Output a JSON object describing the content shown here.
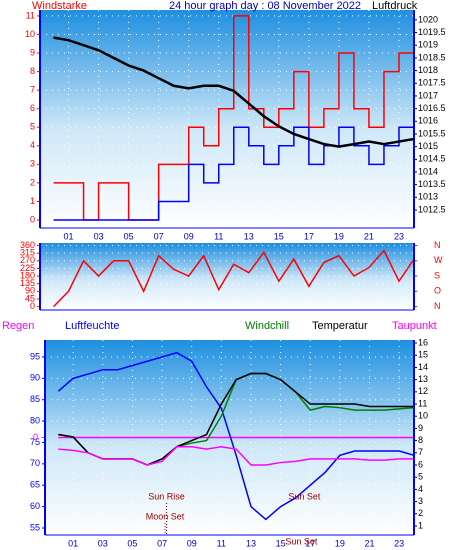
{
  "chart_data": [
    {
      "type": "line",
      "title": "24 hour graph day : 08 November 2022",
      "y_label": "Windstarke",
      "y2_label": "Luftdruck",
      "x": [
        0,
        1,
        2,
        3,
        4,
        5,
        6,
        7,
        8,
        9,
        10,
        11,
        12,
        13,
        14,
        15,
        16,
        17,
        18,
        19,
        20,
        21,
        22,
        23,
        24
      ],
      "xlim": [
        -0.9,
        24
      ],
      "xticks": [
        {
          "value": 1,
          "label": "01"
        },
        {
          "value": 3,
          "label": "03"
        },
        {
          "value": 5,
          "label": "05"
        },
        {
          "value": 7,
          "label": "07"
        },
        {
          "value": 9,
          "label": "09"
        },
        {
          "value": 11,
          "label": "11"
        },
        {
          "value": 13,
          "label": "13"
        },
        {
          "value": 15,
          "label": "15"
        },
        {
          "value": 17,
          "label": "17"
        },
        {
          "value": 19,
          "label": "19"
        },
        {
          "value": 21,
          "label": "21"
        },
        {
          "value": 23,
          "label": "23"
        }
      ],
      "ylim": [
        -0.43,
        11.32
      ],
      "yticks": [
        0,
        1,
        2,
        3,
        4,
        5,
        6,
        7,
        8,
        9,
        10,
        11
      ],
      "y2lim": [
        1011.79,
        1020.39
      ],
      "y2ticks": [
        1012.5,
        1013,
        1013.5,
        1014,
        1014.5,
        1015,
        1015.5,
        1016,
        1016.5,
        1017,
        1017.5,
        1018,
        1018.5,
        1019,
        1019.5,
        1020
      ],
      "grid": true,
      "series": [
        {
          "color": "#ff0000",
          "step": true,
          "values": [
            2,
            2,
            0,
            2,
            2,
            0,
            0,
            3,
            3,
            5,
            4,
            6,
            11,
            6,
            5,
            6,
            8,
            5,
            6,
            9,
            6,
            5,
            8,
            9,
            5
          ]
        },
        {
          "color": "#0000ff",
          "step": true,
          "values": [
            0,
            0,
            0,
            0,
            0,
            0,
            0,
            1,
            1,
            3,
            2,
            3,
            5,
            4,
            3,
            4,
            5,
            3,
            4,
            5,
            4,
            3,
            4,
            5,
            3
          ]
        },
        {
          "color": "#000000",
          "axis": "y2",
          "values": [
            1019.3,
            1019.2,
            1019.0,
            1018.8,
            1018.5,
            1018.2,
            1018.0,
            1017.7,
            1017.4,
            1017.3,
            1017.4,
            1017.4,
            1017.2,
            1016.7,
            1016.2,
            1015.8,
            1015.5,
            1015.3,
            1015.1,
            1015.0,
            1015.1,
            1015.2,
            1015.1,
            1015.2,
            1015.3
          ]
        }
      ]
    },
    {
      "type": "line",
      "x": [
        0,
        1,
        2,
        3,
        4,
        5,
        6,
        7,
        8,
        9,
        10,
        11,
        12,
        13,
        14,
        15,
        16,
        17,
        18,
        19,
        20,
        21,
        22,
        23,
        24
      ],
      "xlim": [
        -0.9,
        24
      ],
      "ylim": [
        -20,
        375
      ],
      "yticks": [
        0,
        45,
        90,
        135,
        180,
        225,
        270,
        315,
        360
      ],
      "y2lim": [
        -20,
        375
      ],
      "y2ticks": [
        {
          "value": 360,
          "label": "N"
        },
        {
          "value": 270,
          "label": "W"
        },
        {
          "value": 180,
          "label": "S"
        },
        {
          "value": 90,
          "label": "O"
        },
        {
          "value": 0,
          "label": "N"
        }
      ],
      "grid": true,
      "series": [
        {
          "color": "#ff0000",
          "values": [
            0,
            90,
            270,
            180,
            270,
            270,
            90,
            300,
            220,
            180,
            300,
            100,
            250,
            200,
            320,
            150,
            280,
            120,
            260,
            300,
            180,
            230,
            330,
            150,
            280
          ]
        }
      ]
    },
    {
      "type": "line",
      "x": [
        0,
        1,
        2,
        3,
        4,
        5,
        6,
        7,
        8,
        9,
        10,
        11,
        12,
        13,
        14,
        15,
        16,
        17,
        18,
        19,
        20,
        21,
        22,
        23,
        24
      ],
      "xlim": [
        -0.9,
        24
      ],
      "xticks": [
        {
          "value": 1,
          "label": "01"
        },
        {
          "value": 3,
          "label": "03"
        },
        {
          "value": 5,
          "label": "05"
        },
        {
          "value": 7,
          "label": "07"
        },
        {
          "value": 9,
          "label": "09"
        },
        {
          "value": 11,
          "label": "11"
        },
        {
          "value": 13,
          "label": "13"
        },
        {
          "value": 15,
          "label": "15"
        },
        {
          "value": 17,
          "label": "17"
        },
        {
          "value": 19,
          "label": "19"
        },
        {
          "value": 21,
          "label": "21"
        },
        {
          "value": 23,
          "label": "23"
        }
      ],
      "ylim": [
        53.36,
        98.97
      ],
      "yticks": [
        55,
        60,
        65,
        70,
        75,
        80,
        85,
        90,
        95
      ],
      "y2lim": [
        0.26,
        16.25
      ],
      "y2ticks": [
        1,
        2,
        3,
        4,
        5,
        6,
        7,
        8,
        9,
        10,
        11,
        12,
        13,
        14,
        15,
        16
      ],
      "y3lim": [
        -1,
        1
      ],
      "y3ticks": [
        0
      ],
      "grid": true,
      "series": [
        {
          "name": "Regen",
          "color": "#ff00ff",
          "axis": "y3",
          "values": [
            0,
            0,
            0,
            0,
            0,
            0,
            0,
            0,
            0,
            0,
            0,
            0,
            0,
            0,
            0,
            0,
            0,
            0,
            0,
            0,
            0,
            0,
            0,
            0,
            0
          ]
        },
        {
          "name": "Luftfeuchte",
          "color": "#0000ff",
          "values": [
            87,
            90,
            91,
            92,
            92,
            93,
            94,
            95,
            96,
            94,
            88,
            83,
            72,
            60,
            57,
            60,
            62,
            65,
            68,
            72,
            73,
            73,
            73,
            73,
            72
          ]
        },
        {
          "name": "Windchill",
          "color": "#008000",
          "axis": "y2",
          "values": [
            8.5,
            8.3,
            7,
            6.5,
            6.5,
            6.5,
            6,
            6.5,
            7.5,
            7.8,
            8,
            10,
            13,
            13.5,
            13.5,
            13,
            12,
            10.5,
            10.8,
            10.7,
            10.5,
            10.5,
            10.5,
            10.6,
            10.7
          ]
        },
        {
          "name": "Temperatur",
          "color": "#000000",
          "axis": "y2",
          "values": [
            8.5,
            8.3,
            7,
            6.5,
            6.5,
            6.5,
            6,
            6.5,
            7.5,
            8,
            8.5,
            11,
            13,
            13.5,
            13.5,
            13,
            12,
            11,
            11,
            11,
            11,
            10.8,
            10.8,
            10.8,
            10.8
          ]
        },
        {
          "name": "Taupunkt",
          "color": "#ff00ff",
          "axis": "y2",
          "values": [
            7.3,
            7.2,
            7,
            6.5,
            6.5,
            6.5,
            6,
            6.3,
            7.5,
            7.5,
            7.3,
            7.5,
            7.3,
            6,
            6,
            6.2,
            6.3,
            6.5,
            6.5,
            6.5,
            6.5,
            6.4,
            6.4,
            6.5,
            6.5
          ]
        }
      ],
      "annotations": [
        {
          "text": "Sun Rise",
          "x": 7.3
        },
        {
          "text": "Moon Set",
          "x": 7.2
        },
        {
          "text": "Sun Set",
          "x": 16.6
        },
        {
          "text": "Sun Set",
          "x": 16.4
        }
      ]
    }
  ]
}
